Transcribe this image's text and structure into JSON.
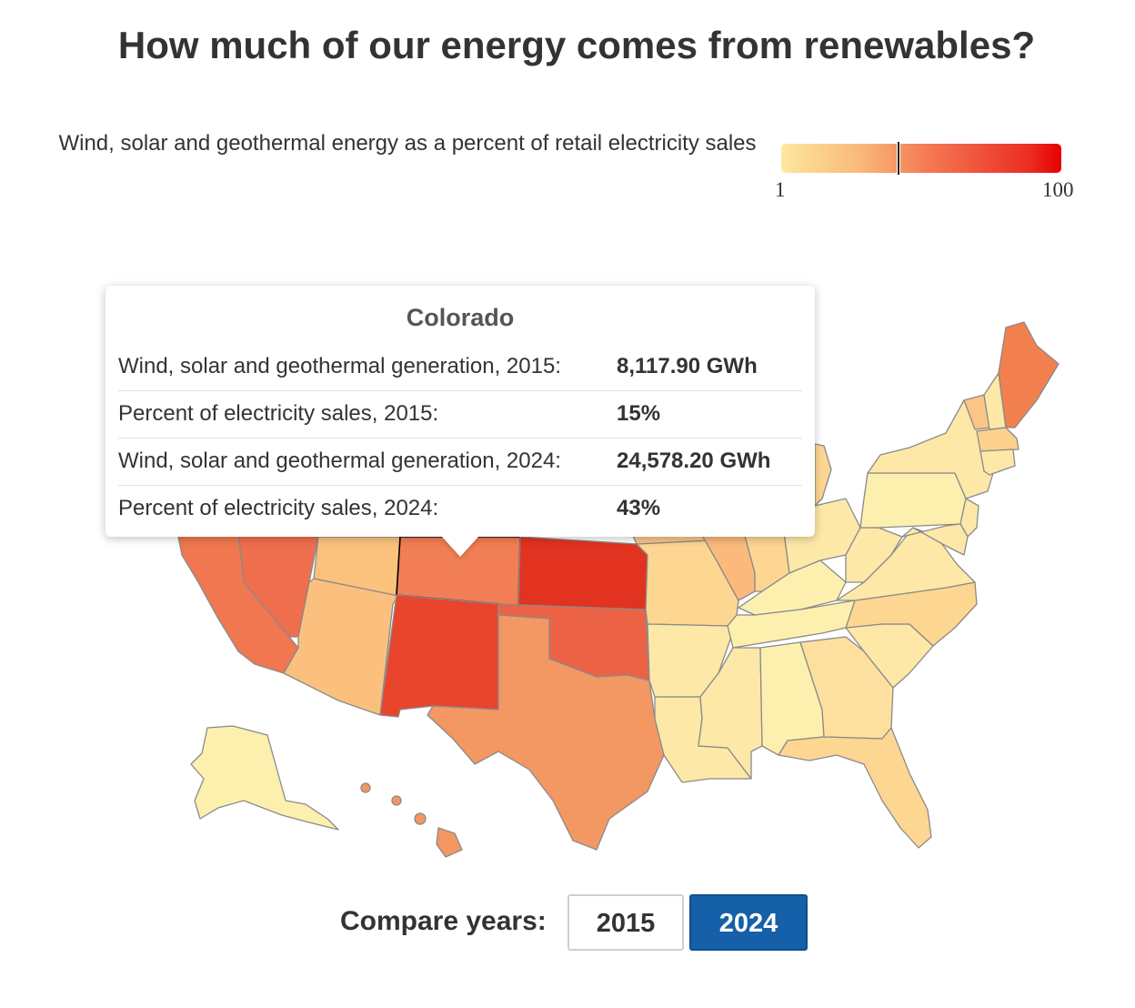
{
  "title": "How much of our energy comes from renewables?",
  "legend": {
    "title": "Wind, solar and geothermal energy as a percent of retail electricity sales",
    "min": "1",
    "max": "100",
    "marker_value": 43,
    "colors": [
      "#fde89e",
      "#f9b979",
      "#f47a55",
      "#ea2f23",
      "#e60000"
    ]
  },
  "tooltip": {
    "state": "Colorado",
    "rows": [
      {
        "label": "Wind, solar and geothermal generation, 2015:",
        "value": "8,117.90 GWh"
      },
      {
        "label": "Percent of electricity sales, 2015:",
        "value": "15%"
      },
      {
        "label": "Wind, solar and geothermal generation, 2024:",
        "value": "24,578.20 GWh"
      },
      {
        "label": "Percent of electricity sales, 2024:",
        "value": "43%"
      }
    ]
  },
  "map": {
    "type": "choropleth",
    "region": "United States",
    "highlighted_state": "Colorado"
  },
  "compare": {
    "label": "Compare years:",
    "buttons": [
      "2015",
      "2024"
    ],
    "selected": "2024"
  }
}
